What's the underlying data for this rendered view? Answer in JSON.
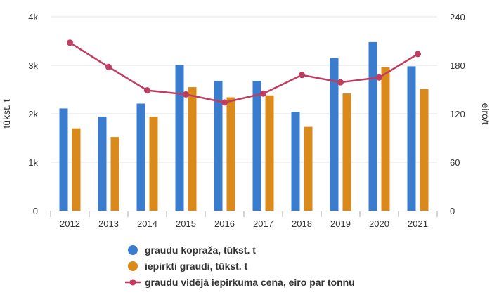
{
  "chart_data": {
    "type": "bar",
    "categories": [
      "2012",
      "2013",
      "2014",
      "2015",
      "2016",
      "2017",
      "2018",
      "2019",
      "2020",
      "2021"
    ],
    "series": [
      {
        "name": "graudu kopraža, tūkst. t",
        "type": "bar",
        "axis": "left",
        "color": "#3a7dce",
        "values": [
          2110,
          1940,
          2210,
          3010,
          2680,
          2680,
          2040,
          3150,
          3480,
          2980
        ]
      },
      {
        "name": "iepirkti graudi, tūkst. t",
        "type": "bar",
        "axis": "left",
        "color": "#d98a1a",
        "values": [
          1700,
          1520,
          1940,
          2550,
          2340,
          2380,
          1730,
          2420,
          2960,
          2510
        ]
      },
      {
        "name": "graudu vidējā iepirkuma cena, eiro par tonnu",
        "type": "line",
        "axis": "right",
        "color": "#c03c60",
        "values": [
          208,
          178,
          149,
          144,
          134,
          145,
          168,
          159,
          165,
          194
        ]
      }
    ],
    "y_left": {
      "label": "tūkst. t",
      "ylim": [
        0,
        4000
      ],
      "ticks": [
        0,
        1000,
        2000,
        3000,
        4000
      ],
      "tick_labels": [
        "0",
        "1k",
        "2k",
        "3k",
        "4k"
      ]
    },
    "y_right": {
      "label": "eiro/t",
      "ylim": [
        0,
        240
      ],
      "ticks": [
        0,
        60,
        120,
        180,
        240
      ],
      "tick_labels": [
        "0",
        "60",
        "120",
        "180",
        "240"
      ]
    },
    "grid": true,
    "legend_position": "bottom-center"
  }
}
